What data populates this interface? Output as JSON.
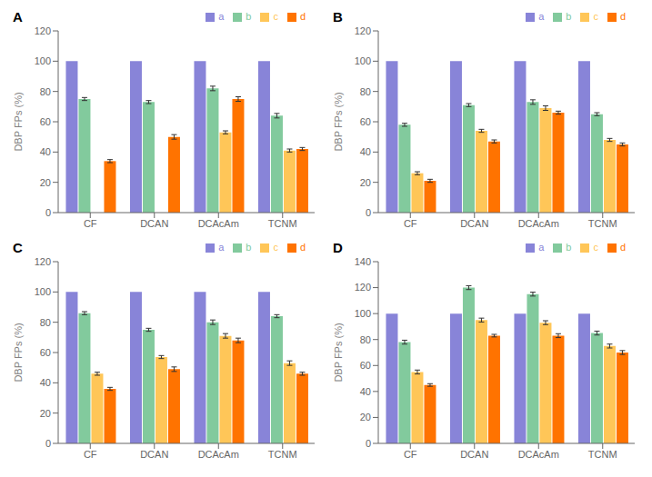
{
  "chart_data": [
    {
      "type": "bar",
      "title": "A",
      "ylabel": "DBP FPs (%)",
      "categories": [
        "CF",
        "DCAN",
        "DCAcAm",
        "TCNM"
      ],
      "ylim": [
        0,
        120
      ],
      "yticks": [
        0,
        20,
        40,
        60,
        80,
        100,
        120
      ],
      "grid": false,
      "legend": "upper right",
      "series": [
        {
          "name": "a",
          "color": "#8884d8",
          "values": [
            100,
            100,
            100,
            100
          ]
        },
        {
          "name": "b",
          "color": "#82ca9d",
          "values": [
            75,
            73,
            82,
            64
          ],
          "errors": [
            1.0,
            1.0,
            1.5,
            1.5
          ]
        },
        {
          "name": "c",
          "color": "#ffc658",
          "values": [
            0,
            0,
            53,
            41
          ],
          "errors": [
            0,
            0,
            1.0,
            1.0
          ]
        },
        {
          "name": "d",
          "color": "#ff7300",
          "values": [
            34,
            50,
            75,
            42
          ],
          "errors": [
            1.0,
            1.5,
            1.5,
            1.0
          ]
        }
      ]
    },
    {
      "type": "bar",
      "title": "B",
      "ylabel": "DBP FPs (%)",
      "categories": [
        "CF",
        "DCAN",
        "DCAcAm",
        "TCNM"
      ],
      "ylim": [
        0,
        120
      ],
      "yticks": [
        0,
        20,
        40,
        60,
        80,
        100,
        120
      ],
      "grid": false,
      "legend": "upper right",
      "series": [
        {
          "name": "a",
          "color": "#8884d8",
          "values": [
            100,
            100,
            100,
            100
          ]
        },
        {
          "name": "b",
          "color": "#82ca9d",
          "values": [
            58,
            71,
            73,
            65
          ],
          "errors": [
            1.0,
            1.0,
            1.5,
            1.0
          ]
        },
        {
          "name": "c",
          "color": "#ffc658",
          "values": [
            26,
            54,
            69,
            48
          ],
          "errors": [
            1.0,
            1.0,
            1.5,
            1.0
          ]
        },
        {
          "name": "d",
          "color": "#ff7300",
          "values": [
            21,
            47,
            66,
            45
          ],
          "errors": [
            1.0,
            1.0,
            1.0,
            1.0
          ]
        }
      ]
    },
    {
      "type": "bar",
      "title": "C",
      "ylabel": "DBP FPs (%)",
      "categories": [
        "CF",
        "DCAN",
        "DCAcAm",
        "TCNM"
      ],
      "ylim": [
        0,
        120
      ],
      "yticks": [
        0,
        20,
        40,
        60,
        80,
        100,
        120
      ],
      "grid": false,
      "legend": "upper right",
      "series": [
        {
          "name": "a",
          "color": "#8884d8",
          "values": [
            100,
            100,
            100,
            100
          ]
        },
        {
          "name": "b",
          "color": "#82ca9d",
          "values": [
            86,
            75,
            80,
            84
          ],
          "errors": [
            1.0,
            1.0,
            1.5,
            1.0
          ]
        },
        {
          "name": "c",
          "color": "#ffc658",
          "values": [
            46,
            57,
            71,
            53
          ],
          "errors": [
            1.0,
            1.0,
            1.5,
            1.5
          ]
        },
        {
          "name": "d",
          "color": "#ff7300",
          "values": [
            36,
            49,
            68,
            46
          ],
          "errors": [
            1.0,
            1.5,
            1.5,
            1.0
          ]
        }
      ]
    },
    {
      "type": "bar",
      "title": "D",
      "ylabel": "DBP FPs (%)",
      "categories": [
        "CF",
        "DCAN",
        "DCAcAm",
        "TCNM"
      ],
      "ylim": [
        0,
        140
      ],
      "yticks": [
        0,
        20,
        40,
        60,
        80,
        100,
        120,
        140
      ],
      "grid": false,
      "legend": "upper right",
      "series": [
        {
          "name": "a",
          "color": "#8884d8",
          "values": [
            100,
            100,
            100,
            100
          ]
        },
        {
          "name": "b",
          "color": "#82ca9d",
          "values": [
            78,
            120,
            115,
            85
          ],
          "errors": [
            1.5,
            1.5,
            1.5,
            1.5
          ]
        },
        {
          "name": "c",
          "color": "#ffc658",
          "values": [
            55,
            95,
            93,
            75
          ],
          "errors": [
            1.5,
            1.5,
            1.5,
            1.5
          ]
        },
        {
          "name": "d",
          "color": "#ff7300",
          "values": [
            45,
            83,
            83,
            70
          ],
          "errors": [
            1.0,
            1.0,
            1.5,
            1.5
          ]
        }
      ]
    }
  ]
}
